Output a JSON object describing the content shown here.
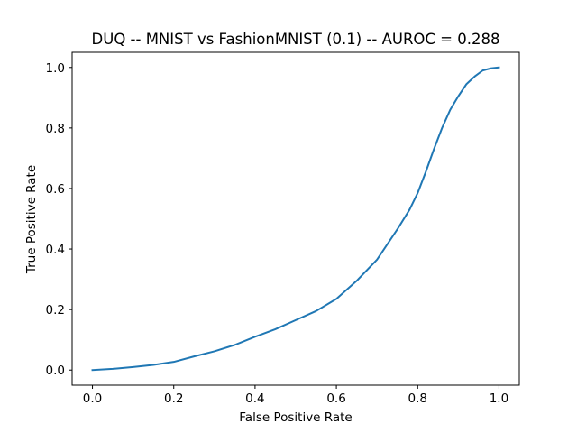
{
  "chart_data": {
    "type": "line",
    "title": "DUQ -- MNIST vs FashionMNIST (0.1) -- AUROC = 0.288",
    "xlabel": "False Positive Rate",
    "ylabel": "True Positive Rate",
    "xlim": [
      -0.05,
      1.05
    ],
    "ylim": [
      -0.05,
      1.05
    ],
    "xticks": [
      0.0,
      0.2,
      0.4,
      0.6,
      0.8,
      1.0
    ],
    "xtick_labels": [
      "0.0",
      "0.2",
      "0.4",
      "0.6",
      "0.8",
      "1.0"
    ],
    "yticks": [
      0.0,
      0.2,
      0.4,
      0.6,
      0.8,
      1.0
    ],
    "ytick_labels": [
      "0.0",
      "0.2",
      "0.4",
      "0.6",
      "0.8",
      "1.0"
    ],
    "grid": false,
    "series": [
      {
        "color": "#1f77b4",
        "x": [
          0.0,
          0.05,
          0.1,
          0.15,
          0.2,
          0.25,
          0.3,
          0.35,
          0.4,
          0.45,
          0.5,
          0.55,
          0.6,
          0.65,
          0.7,
          0.75,
          0.78,
          0.8,
          0.82,
          0.84,
          0.86,
          0.88,
          0.9,
          0.92,
          0.94,
          0.96,
          0.98,
          1.0
        ],
        "y": [
          0.0,
          0.004,
          0.01,
          0.017,
          0.027,
          0.045,
          0.062,
          0.083,
          0.11,
          0.135,
          0.165,
          0.195,
          0.235,
          0.295,
          0.365,
          0.465,
          0.53,
          0.585,
          0.655,
          0.73,
          0.8,
          0.86,
          0.905,
          0.945,
          0.97,
          0.99,
          0.997,
          1.0
        ]
      }
    ]
  }
}
